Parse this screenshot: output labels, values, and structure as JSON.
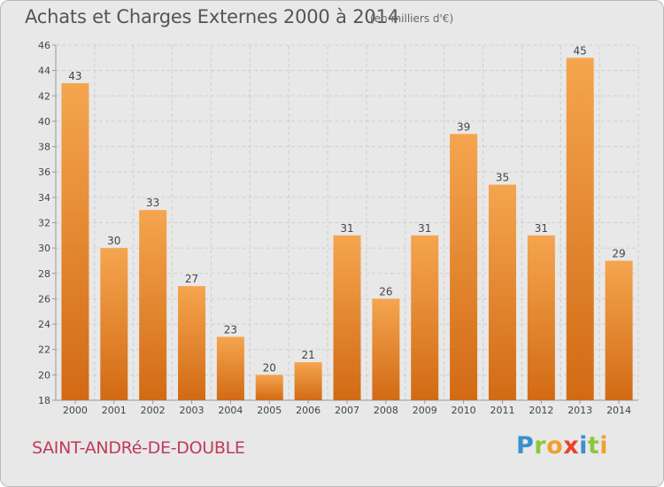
{
  "chart_data": {
    "type": "bar",
    "title": "Achats et Charges Externes 2000 à 2014",
    "subtitle": "(en milliers d'€)",
    "categories": [
      "2000",
      "2001",
      "2002",
      "2003",
      "2004",
      "2005",
      "2006",
      "2007",
      "2008",
      "2009",
      "2010",
      "2011",
      "2012",
      "2013",
      "2014"
    ],
    "values": [
      43,
      30,
      33,
      27,
      23,
      20,
      21,
      31,
      26,
      31,
      39,
      35,
      31,
      45,
      29
    ],
    "ylim": [
      18,
      46
    ],
    "yticks": [
      18,
      20,
      22,
      24,
      26,
      28,
      30,
      32,
      34,
      36,
      38,
      40,
      42,
      44,
      46
    ],
    "grid": true,
    "bar_color_top": "#f5a54f",
    "bar_color_bottom": "#d26a14"
  },
  "footer": {
    "location": "SAINT-ANDRé-DE-DOUBLE",
    "brand_letters": [
      "P",
      "r",
      "o",
      "x",
      "i",
      "t",
      "i"
    ],
    "brand_colors": [
      "#3a8fd0",
      "#8cc63f",
      "#f0a030",
      "#e8432f",
      "#3a8fd0",
      "#8cc63f",
      "#f0a030"
    ]
  }
}
